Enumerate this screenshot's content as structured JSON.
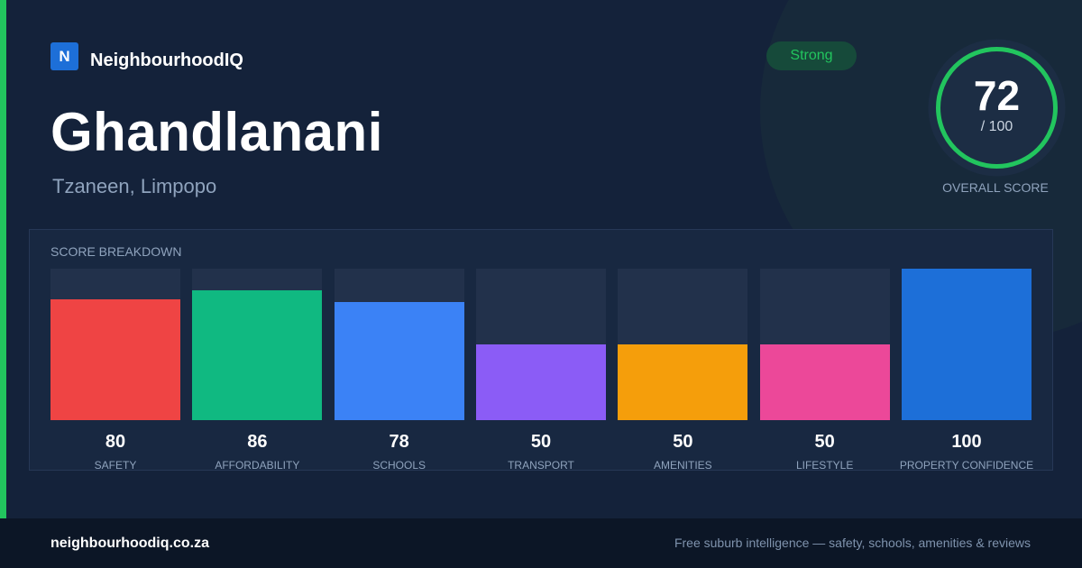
{
  "brand": {
    "logo_letter": "N",
    "name": "NeighbourhoodIQ"
  },
  "suburb": {
    "name": "Ghandlanani",
    "location": "Tzaneen, Limpopo"
  },
  "badge": {
    "label": "Strong",
    "color": "#22c55e"
  },
  "overall": {
    "score": "72",
    "max_label": "/ 100",
    "caption": "OVERALL SCORE",
    "fraction": 0.72,
    "ring_color": "#22c55e"
  },
  "breakdown": {
    "title": "SCORE BREAKDOWN",
    "items": [
      {
        "label": "SAFETY",
        "value": "80",
        "color": "#ef4444"
      },
      {
        "label": "AFFORDABILITY",
        "value": "86",
        "color": "#10b981"
      },
      {
        "label": "SCHOOLS",
        "value": "78",
        "color": "#3b82f6"
      },
      {
        "label": "TRANSPORT",
        "value": "50",
        "color": "#8b5cf6"
      },
      {
        "label": "AMENITIES",
        "value": "50",
        "color": "#f59e0b"
      },
      {
        "label": "LIFESTYLE",
        "value": "50",
        "color": "#ec4899"
      },
      {
        "label": "PROPERTY CONFIDENCE",
        "value": "100",
        "color": "#1d6fd8"
      }
    ]
  },
  "footer": {
    "url": "neighbourhoodiq.co.za",
    "tagline": "Free suburb intelligence — safety, schools, amenities & reviews"
  },
  "colors": {
    "accent": "#22c55e",
    "background": "#14223a",
    "brand": "#1d6fd8"
  }
}
